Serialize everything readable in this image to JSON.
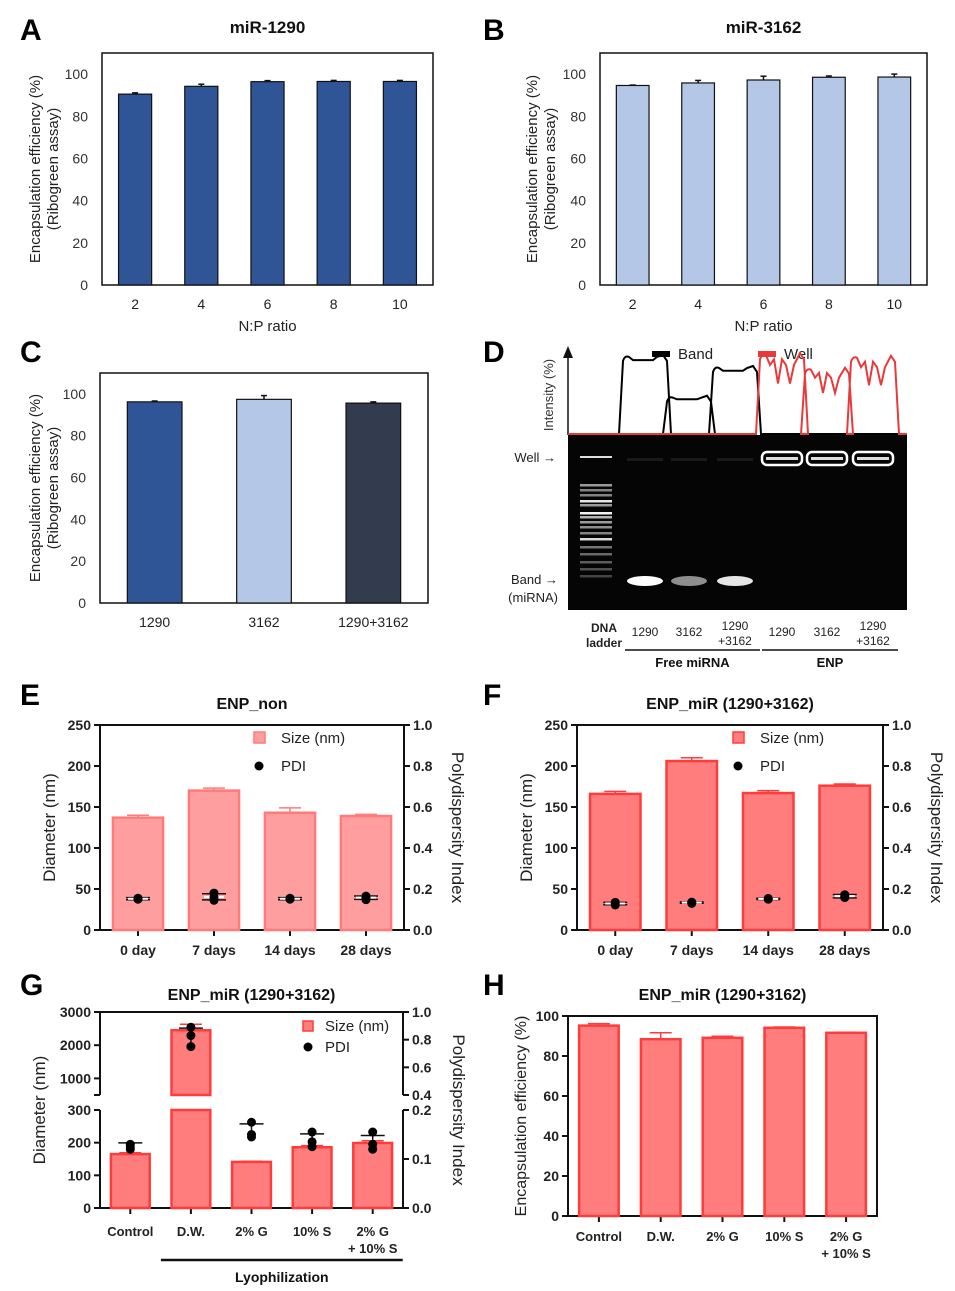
{
  "figure": {
    "panel_letters": [
      "A",
      "B",
      "C",
      "D",
      "E",
      "F",
      "G",
      "H"
    ]
  },
  "colors": {
    "dark_blue": "#2f5597",
    "light_blue": "#b4c7e7",
    "slate": "#323c4e",
    "pink_light_fill": "#ff9e9e",
    "pink_light_edge": "#ff7a7a",
    "pink_fill": "#ff7d7d",
    "pink_edge": "#ff3c3c",
    "band_line": "#000000",
    "well_line": "#e8393b"
  },
  "chart_data": [
    {
      "id": "A",
      "type": "bar",
      "title": "miR-1290",
      "xlabel": "N:P ratio",
      "ylabel": [
        "Encapsulation efficiency (%)",
        "(Ribogreen assay)"
      ],
      "categories": [
        "2",
        "4",
        "6",
        "8",
        "10"
      ],
      "values": [
        90.5,
        94.2,
        96.4,
        96.5,
        96.5
      ],
      "errors": [
        0.6,
        1.0,
        0.5,
        0.5,
        0.5
      ],
      "ylim": [
        0,
        110
      ],
      "yticks": [
        0,
        20,
        40,
        60,
        80,
        100
      ],
      "color": "dark_blue"
    },
    {
      "id": "B",
      "type": "bar",
      "title": "miR-3162",
      "xlabel": "N:P ratio",
      "ylabel": [
        "Encapsulation efficiency (%)",
        "(Ribogreen assay)"
      ],
      "categories": [
        "2",
        "4",
        "6",
        "8",
        "10"
      ],
      "values": [
        94.6,
        95.8,
        97.2,
        98.5,
        98.6
      ],
      "errors": [
        0.2,
        1.2,
        1.8,
        0.6,
        1.4
      ],
      "ylim": [
        0,
        110
      ],
      "yticks": [
        0,
        20,
        40,
        60,
        80,
        100
      ],
      "color": "light_blue"
    },
    {
      "id": "C",
      "type": "bar",
      "title": "",
      "xlabel": "",
      "ylabel": [
        "Encapsulation efficiency (%)",
        "(Ribogreen assay)"
      ],
      "categories": [
        "1290",
        "3162",
        "1290+3162"
      ],
      "values": [
        96.2,
        97.4,
        95.6
      ],
      "errors": [
        0.4,
        1.8,
        0.6
      ],
      "colors": [
        "dark_blue",
        "light_blue",
        "slate"
      ],
      "ylim": [
        0,
        110
      ],
      "yticks": [
        0,
        20,
        40,
        60,
        80,
        100
      ]
    },
    {
      "id": "D",
      "type": "gel",
      "yaxis_label": "Intensity (%)",
      "legend": [
        {
          "name": "Band",
          "color": "band_line"
        },
        {
          "name": "Well",
          "color": "well_line"
        }
      ],
      "row_labels": [
        {
          "text": "Well →"
        },
        {
          "text": "Band →"
        },
        {
          "text": "(miRNA)"
        }
      ],
      "lanes": [
        "DNA ladder",
        "1290",
        "3162",
        "1290 +3162",
        "1290",
        "3162",
        "1290 +3162"
      ],
      "lane_label_lines": [
        [
          "DNA",
          "ladder"
        ],
        [
          "1290"
        ],
        [
          "3162"
        ],
        [
          "1290",
          "+3162"
        ],
        [
          "1290"
        ],
        [
          "3162"
        ],
        [
          "1290",
          "+3162"
        ]
      ],
      "groups": [
        {
          "name": "Free miRNA",
          "lanes": [
            1,
            2,
            3
          ]
        },
        {
          "name": "ENP",
          "lanes": [
            4,
            5,
            6
          ]
        }
      ],
      "band_profile_relative": [
        0,
        0.93,
        0.45,
        0.8,
        0,
        0,
        0
      ],
      "well_profile_relative": [
        0,
        0,
        0,
        0,
        0.95,
        0.78,
        0.92
      ]
    },
    {
      "id": "E",
      "type": "bar+scatter",
      "title": "ENP_non",
      "ylabel": "Diameter (nm)",
      "y2label": "Polydispersity Index",
      "categories": [
        "0 day",
        "7 days",
        "14 days",
        "28 days"
      ],
      "series": [
        {
          "name": "Size (nm)",
          "type": "bar",
          "values": [
            137,
            170,
            143,
            139
          ],
          "errors": [
            3,
            3,
            6,
            2
          ]
        },
        {
          "name": "PDI",
          "type": "scatter",
          "axis": "right",
          "points": [
            [
              0.15,
              0.155,
              0.153
            ],
            [
              0.145,
              0.16,
              0.18
            ],
            [
              0.15,
              0.153,
              0.155
            ],
            [
              0.148,
              0.16,
              0.165
            ]
          ],
          "errors": [
            0.005,
            0.015,
            0.005,
            0.008
          ]
        }
      ],
      "ylim": [
        0,
        250
      ],
      "yticks": [
        0,
        50,
        100,
        150,
        200,
        250
      ],
      "y2lim": [
        0,
        1.0
      ],
      "y2ticks": [
        "0.0",
        "0.2",
        "0.4",
        "0.6",
        "0.8",
        "1.0"
      ],
      "fill": "pink_light_fill",
      "edge": "pink_light_edge",
      "legend_position": "top-right"
    },
    {
      "id": "F",
      "type": "bar+scatter",
      "title": "ENP_miR (1290+3162)",
      "ylabel": "Diameter (nm)",
      "y2label": "Polydispersity Index",
      "categories": [
        "0 day",
        "7 days",
        "14 days",
        "28 days"
      ],
      "series": [
        {
          "name": "Size (nm)",
          "type": "bar",
          "values": [
            166,
            206,
            167,
            176
          ],
          "errors": [
            3,
            4,
            3,
            2
          ]
        },
        {
          "name": "PDI",
          "type": "scatter",
          "axis": "right",
          "points": [
            [
              0.122,
              0.13,
              0.135
            ],
            [
              0.13,
              0.134,
              0.136
            ],
            [
              0.15,
              0.152,
              0.154
            ],
            [
              0.158,
              0.165,
              0.172
            ]
          ],
          "errors": [
            0.006,
            0.003,
            0.003,
            0.008
          ]
        }
      ],
      "ylim": [
        0,
        250
      ],
      "yticks": [
        0,
        50,
        100,
        150,
        200,
        250
      ],
      "y2lim": [
        0,
        1.0
      ],
      "y2ticks": [
        "0.0",
        "0.2",
        "0.4",
        "0.6",
        "0.8",
        "1.0"
      ],
      "fill": "pink_fill",
      "edge": "pink_edge",
      "legend_position": "top-right"
    },
    {
      "id": "G",
      "type": "bar+scatter",
      "title": "ENP_miR (1290+3162)",
      "ylabel": "Diameter (nm)",
      "y2label": "Polydispersity Index",
      "categories": [
        "Control",
        "D.W.",
        "2% G",
        "10% S",
        "2% G\n+ 10% S"
      ],
      "category_lines": [
        [
          "Control"
        ],
        [
          "D.W."
        ],
        [
          "2% G"
        ],
        [
          "10% S"
        ],
        [
          "2% G",
          "+ 10% S"
        ]
      ],
      "group_label": "Lyophilization",
      "group_lanes": [
        1,
        4
      ],
      "series": [
        {
          "name": "Size (nm)",
          "type": "bar",
          "values": [
            165,
            2450,
            141,
            186,
            199
          ],
          "errors": [
            4,
            180,
            2,
            5,
            7
          ]
        },
        {
          "name": "PDI",
          "type": "scatter",
          "axis": "right",
          "points": [
            [
              0.12,
              0.125,
              0.13
            ],
            [
              0.75,
              0.83,
              0.89
            ],
            [
              0.145,
              0.15,
              0.175
            ],
            [
              0.125,
              0.135,
              0.155
            ],
            [
              0.12,
              0.13,
              0.155
            ]
          ],
          "errors": [
            0.008,
            0.06,
            0.015,
            0.013,
            0.013
          ]
        }
      ],
      "ylim_lower": [
        0,
        300
      ],
      "yticks_lower": [
        0,
        100,
        200,
        300
      ],
      "ylim_upper": [
        500,
        3000
      ],
      "yticks_upper": [
        1000,
        2000,
        3000
      ],
      "y2lim_lower": [
        0,
        0.2
      ],
      "y2ticks_lower": [
        "0.0",
        "0.1",
        "0.2"
      ],
      "y2lim_upper": [
        0.4,
        1.0
      ],
      "y2ticks_upper": [
        "0.4",
        "0.6",
        "0.8",
        "1.0"
      ],
      "fill": "pink_fill",
      "edge": "pink_edge",
      "legend_position": "top-right",
      "axis_break": true
    },
    {
      "id": "H",
      "type": "bar",
      "title": "ENP_miR (1290+3162)",
      "ylabel": "Encapsulation efficiency (%)",
      "categories": [
        "Control",
        "D.W.",
        "2% G",
        "10% S",
        "2% G\n+ 10% S"
      ],
      "category_lines": [
        [
          "Control"
        ],
        [
          "D.W."
        ],
        [
          "2% G"
        ],
        [
          "10% S"
        ],
        [
          "2% G",
          "+ 10% S"
        ]
      ],
      "values": [
        95.2,
        88.4,
        89.1,
        94.1,
        91.6
      ],
      "errors": [
        1.0,
        3.2,
        0.8,
        0.4,
        0.3
      ],
      "ylim": [
        0,
        100
      ],
      "yticks": [
        0,
        20,
        40,
        60,
        80,
        100
      ],
      "fill": "pink_fill",
      "edge": "pink_edge"
    }
  ]
}
